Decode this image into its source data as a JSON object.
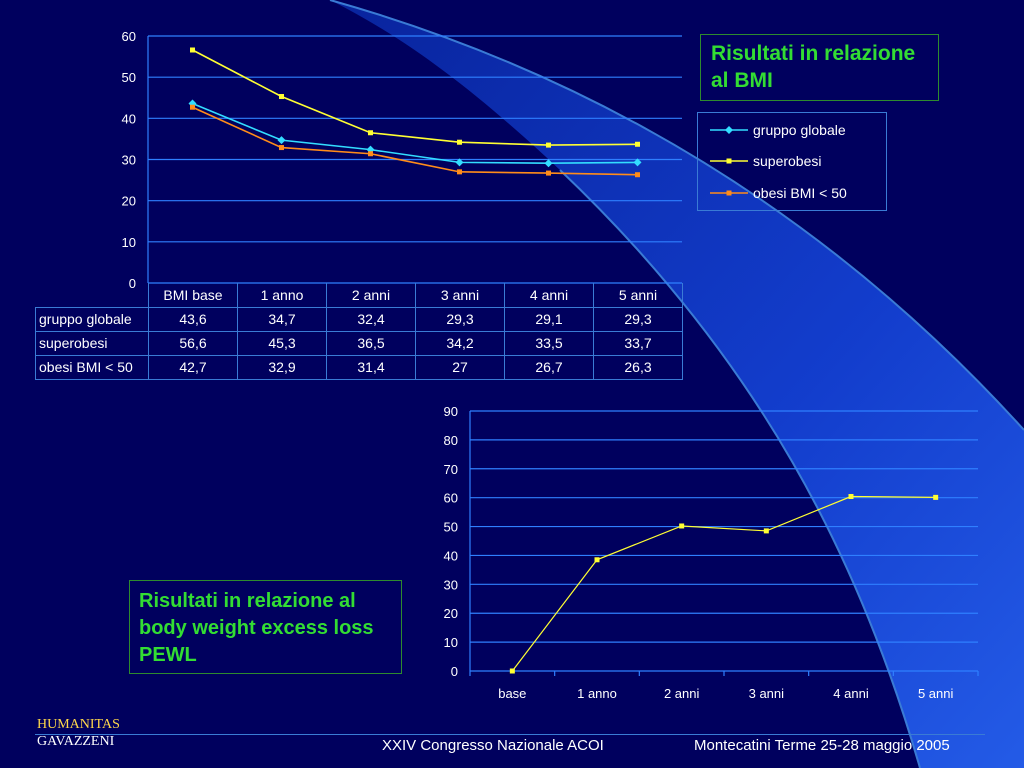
{
  "slide": {
    "title_bmi": "Risultati in relazione al BMI",
    "title_pewl": "Risultati in relazione al body weight excess loss PEWL",
    "footer_brand_line1": "HUMANITAS",
    "footer_brand_line2": "GAVAZZENI",
    "footer_center": "XXIV Congresso Nazionale ACOI",
    "footer_right": "Montecatini Terme 25-28 maggio 2005"
  },
  "colors": {
    "background": "#00005e",
    "grid": "#2f7fff",
    "gruppo_globale": "#33ddff",
    "superobesi": "#ffff33",
    "obesi": "#ff8c1a",
    "title_green": "#33dd33"
  },
  "chart_data": [
    {
      "type": "line",
      "categories": [
        "BMI base",
        "1 anno",
        "2 anni",
        "3 anni",
        "4 anni",
        "5 anni"
      ],
      "series": [
        {
          "name": "gruppo globale",
          "values": [
            43.6,
            34.7,
            32.4,
            29.3,
            29.1,
            29.3
          ],
          "labels": [
            "43,6",
            "34,7",
            "32,4",
            "29,3",
            "29,1",
            "29,3"
          ],
          "marker": "diamond"
        },
        {
          "name": "superobesi",
          "values": [
            56.6,
            45.3,
            36.5,
            34.2,
            33.5,
            33.7
          ],
          "labels": [
            "56,6",
            "45,3",
            "36,5",
            "34,2",
            "33,5",
            "33,7"
          ],
          "marker": "square"
        },
        {
          "name": "obesi BMI < 50",
          "values": [
            42.7,
            32.9,
            31.4,
            27,
            26.7,
            26.3
          ],
          "labels": [
            "42,7",
            "32,9",
            "31,4",
            "27",
            "26,7",
            "26,3"
          ],
          "marker": "square"
        }
      ],
      "ylim": [
        0,
        60
      ],
      "yticks": [
        0,
        10,
        20,
        30,
        40,
        50,
        60
      ],
      "grid": true,
      "legend_position": "right",
      "data_table": true
    },
    {
      "type": "line",
      "categories": [
        "base",
        "1 anno",
        "2 anni",
        "3 anni",
        "4 anni",
        "5 anni"
      ],
      "series": [
        {
          "values": [
            0,
            38.5,
            50.2,
            48.5,
            60.4,
            60.1
          ]
        }
      ],
      "ylim": [
        0,
        90
      ],
      "yticks": [
        0,
        10,
        20,
        30,
        40,
        50,
        60,
        70,
        80,
        90
      ],
      "grid": true
    }
  ]
}
